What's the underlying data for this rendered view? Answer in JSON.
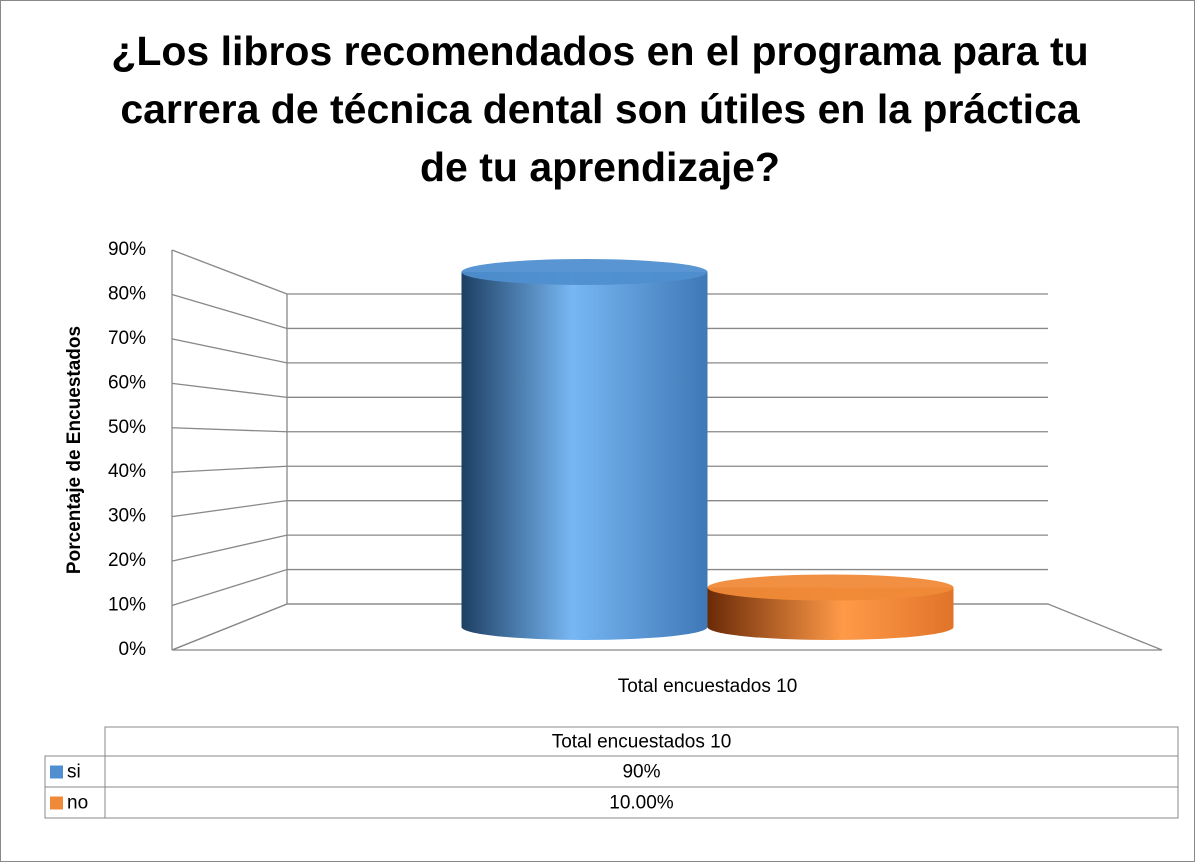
{
  "chart_data": {
    "type": "bar3d",
    "title": "¿Los libros recomendados en el programa para tu carrera de técnica dental son útiles en la práctica de tu aprendizaje?",
    "y_label": "Porcentaje de Encuestados",
    "categories": [
      "Total encuestados 10"
    ],
    "series": [
      {
        "name": "si",
        "color": "#4f8fd0",
        "values": [
          90
        ],
        "value_labels": [
          "90%"
        ]
      },
      {
        "name": "no",
        "color": "#f08a38",
        "values": [
          10
        ],
        "value_labels": [
          "10.00%"
        ]
      }
    ],
    "ylim": [
      0,
      90
    ],
    "yticks": [
      {
        "value": 0,
        "label": "0%"
      },
      {
        "value": 10,
        "label": "10%"
      },
      {
        "value": 20,
        "label": "20%"
      },
      {
        "value": 30,
        "label": "30%"
      },
      {
        "value": 40,
        "label": "40%"
      },
      {
        "value": 50,
        "label": "50%"
      },
      {
        "value": 60,
        "label": "60%"
      },
      {
        "value": 70,
        "label": "70%"
      },
      {
        "value": 80,
        "label": "80%"
      },
      {
        "value": 90,
        "label": "90%"
      }
    ],
    "grid": true
  }
}
